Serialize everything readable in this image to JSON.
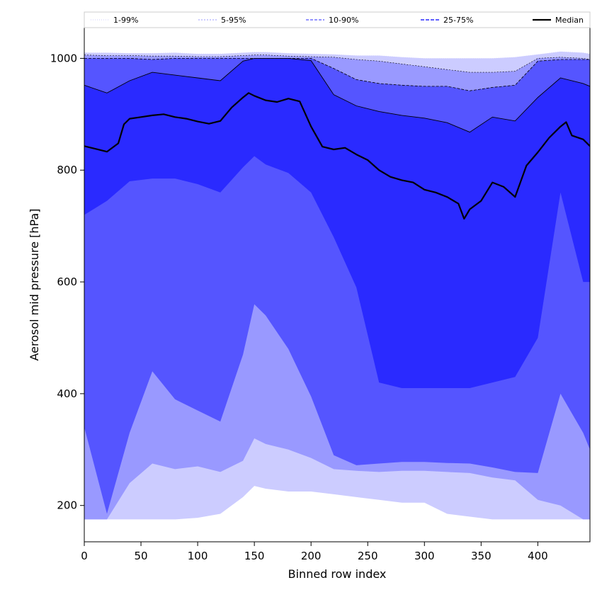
{
  "chart_data": {
    "type": "area",
    "xlabel": "Binned row index",
    "ylabel": "Aerosol mid pressure [hPa]",
    "xlim": [
      0,
      446
    ],
    "ylim": [
      135,
      1055
    ],
    "xticks": [
      0,
      50,
      100,
      150,
      200,
      250,
      300,
      350,
      400
    ],
    "yticks": [
      200,
      400,
      600,
      800,
      1000
    ],
    "legend_position": "top (above plot, one row)",
    "colors": {
      "p1_99": "#ccccff",
      "p5_95": "#9999ff",
      "p10_90": "#5555ff",
      "p25_75": "#2a2aff",
      "median": "#000000"
    },
    "bands": [
      {
        "name": "1-99%",
        "key": "p1_99",
        "x": [
          0,
          20,
          40,
          60,
          80,
          100,
          120,
          140,
          150,
          160,
          180,
          200,
          220,
          240,
          260,
          280,
          300,
          320,
          340,
          360,
          380,
          400,
          420,
          440,
          446
        ],
        "lower": [
          175,
          175,
          175,
          175,
          175,
          178,
          185,
          215,
          235,
          230,
          225,
          225,
          220,
          215,
          210,
          205,
          205,
          185,
          180,
          175,
          175,
          175,
          175,
          175,
          175
        ],
        "upper": [
          1010,
          1010,
          1009,
          1009,
          1010,
          1008,
          1008,
          1010,
          1011,
          1011,
          1009,
          1008,
          1007,
          1005,
          1005,
          1002,
          1000,
          1000,
          1000,
          1000,
          1002,
          1007,
          1012,
          1010,
          1008
        ]
      },
      {
        "name": "5-95%",
        "key": "p5_95",
        "x": [
          0,
          20,
          40,
          60,
          80,
          100,
          120,
          140,
          150,
          160,
          180,
          200,
          220,
          240,
          260,
          280,
          300,
          320,
          340,
          360,
          380,
          400,
          420,
          440,
          446
        ],
        "lower": [
          175,
          175,
          240,
          275,
          265,
          270,
          260,
          280,
          320,
          310,
          300,
          285,
          265,
          262,
          260,
          262,
          262,
          260,
          258,
          250,
          245,
          210,
          200,
          175,
          175
        ],
        "upper": [
          1006,
          1005,
          1005,
          1004,
          1004,
          1003,
          1003,
          1005,
          1006,
          1006,
          1004,
          1003,
          1002,
          998,
          995,
          990,
          985,
          980,
          975,
          975,
          977,
          1000,
          1002,
          1000,
          998
        ]
      },
      {
        "name": "10-90%",
        "key": "p10_90",
        "x": [
          0,
          20,
          40,
          60,
          80,
          100,
          120,
          140,
          150,
          160,
          180,
          200,
          220,
          240,
          260,
          280,
          300,
          320,
          340,
          360,
          380,
          400,
          420,
          440,
          446
        ],
        "lower": [
          340,
          185,
          330,
          440,
          390,
          370,
          350,
          470,
          560,
          540,
          480,
          395,
          290,
          272,
          275,
          278,
          278,
          276,
          275,
          268,
          260,
          258,
          400,
          330,
          300
        ],
        "upper": [
          1000,
          1000,
          1000,
          998,
          1000,
          1000,
          1000,
          1000,
          1000,
          1000,
          1000,
          1000,
          982,
          962,
          955,
          952,
          950,
          950,
          942,
          948,
          952,
          995,
          998,
          998,
          998
        ]
      },
      {
        "name": "25-75%",
        "key": "p25_75",
        "x": [
          0,
          20,
          40,
          60,
          80,
          100,
          120,
          140,
          150,
          160,
          180,
          200,
          220,
          240,
          260,
          280,
          300,
          320,
          340,
          360,
          380,
          400,
          420,
          440,
          446
        ],
        "lower": [
          720,
          745,
          780,
          785,
          785,
          775,
          760,
          805,
          825,
          810,
          795,
          760,
          680,
          590,
          420,
          410,
          410,
          410,
          410,
          420,
          430,
          500,
          760,
          600,
          600
        ],
        "upper": [
          952,
          938,
          960,
          975,
          970,
          965,
          960,
          995,
          1000,
          1000,
          1000,
          996,
          935,
          915,
          905,
          898,
          893,
          885,
          868,
          895,
          888,
          930,
          965,
          955,
          950
        ]
      }
    ],
    "series": [
      {
        "name": "Median",
        "key": "median",
        "x": [
          0,
          10,
          20,
          30,
          35,
          40,
          50,
          60,
          70,
          80,
          90,
          100,
          110,
          120,
          130,
          140,
          145,
          150,
          160,
          170,
          180,
          190,
          200,
          210,
          220,
          230,
          240,
          250,
          260,
          270,
          280,
          290,
          300,
          310,
          320,
          330,
          335,
          340,
          350,
          360,
          370,
          380,
          390,
          400,
          410,
          420,
          425,
          430,
          440,
          446
        ],
        "values": [
          843,
          838,
          833,
          848,
          882,
          892,
          895,
          898,
          900,
          895,
          892,
          887,
          883,
          888,
          912,
          930,
          938,
          933,
          925,
          922,
          928,
          923,
          878,
          842,
          837,
          840,
          828,
          818,
          800,
          788,
          782,
          778,
          765,
          760,
          752,
          740,
          713,
          730,
          745,
          778,
          770,
          752,
          808,
          832,
          858,
          878,
          886,
          862,
          855,
          843
        ]
      }
    ],
    "legend": [
      {
        "label": "1-99%",
        "key": "p1_99",
        "style": "dotted-thin"
      },
      {
        "label": "5-95%",
        "key": "p5_95",
        "style": "dotted"
      },
      {
        "label": "10-90%",
        "key": "p10_90",
        "style": "dashed"
      },
      {
        "label": "25-75%",
        "key": "p25_75",
        "style": "dashed-thick"
      },
      {
        "label": "Median",
        "key": "median",
        "style": "solid"
      }
    ]
  }
}
